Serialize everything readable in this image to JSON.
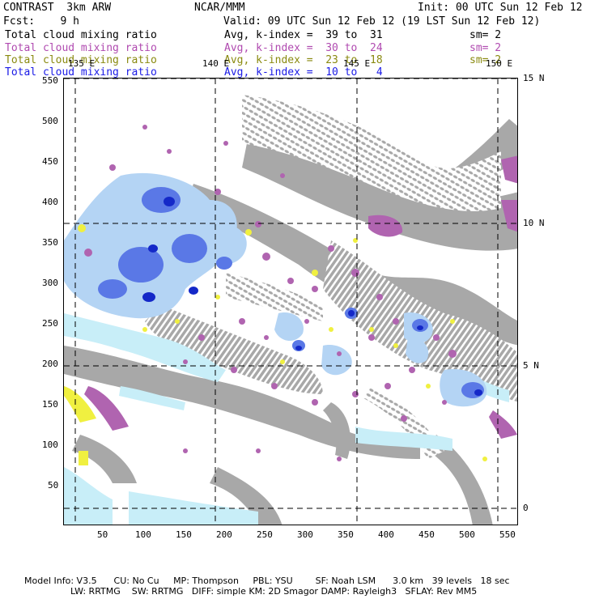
{
  "header": {
    "left1": "CONTRAST  3km ARW",
    "center1": "NCAR/MMM",
    "right1": "Init: 00 UTC Sun 12 Feb 12",
    "left2": "Fcst:    9 h",
    "right2": "Valid: 09 UTC Sun 12 Feb 12 (19 LST Sun 12 Feb 12)"
  },
  "fields": [
    {
      "name": "Total cloud mixing ratio",
      "range": "Avg, k-index =  39 to  31",
      "sm": "sm= 2",
      "color": "#000000"
    },
    {
      "name": "Total cloud mixing ratio",
      "range": "Avg, k-index =  30 to  24",
      "sm": "sm= 2",
      "color": "#b04ab0"
    },
    {
      "name": "Total cloud mixing ratio",
      "range": "Avg, k-index =  23 to  18",
      "sm": "sm= 2",
      "color": "#8a8a10"
    },
    {
      "name": "Total cloud mixing ratio",
      "range": "Avg, k-index =  10 to   4",
      "sm": "sm= 2",
      "color": "#1a1ae6"
    }
  ],
  "map": {
    "lon_labels": [
      "135 E",
      "140 E",
      "145 E",
      "150 E"
    ],
    "lat_labels": [
      "15 N",
      "10 N",
      "5 N",
      "0"
    ],
    "x_ticks": [
      "50",
      "100",
      "150",
      "200",
      "250",
      "300",
      "350",
      "400",
      "450",
      "500",
      "550"
    ],
    "y_ticks": [
      "550",
      "500",
      "450",
      "400",
      "350",
      "300",
      "250",
      "200",
      "150",
      "100",
      "50"
    ],
    "colors": {
      "gray": "#a8a8a8",
      "purple": "#b064b0",
      "yellow": "#f0f040",
      "lightcyan": "#c8eef8",
      "lightblue": "#b4d4f4",
      "blue": "#5a78e6",
      "darkblue": "#1428c8"
    }
  },
  "footer": {
    "line1": "Model Info: V3.5      CU: No Cu     MP: Thompson     PBL: YSU        SF: Noah LSM      3.0 km   39 levels   18 sec",
    "line2": "LW: RRTMG    SW: RRTMG   DIFF: simple KM: 2D Smagor DAMP: Rayleigh3   SFLAY: Rev MM5"
  }
}
